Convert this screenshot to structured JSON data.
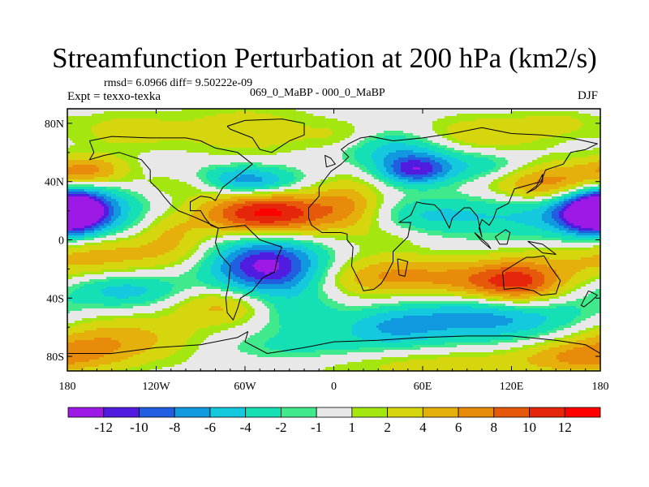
{
  "chart_data": {
    "type": "heatmap",
    "title": "Streamfunction Perturbation at 200 hPa (km2/s)",
    "stats_label": "rmsd= 6.0966 diff= 9.50222e-09",
    "left_label": "Expt = texxo-texka",
    "center_label": "069_0_MaBP - 000_0_MaBP",
    "right_label": "DJF",
    "xlim": [
      -180,
      180
    ],
    "ylim": [
      -90,
      90
    ],
    "x_ticks": [
      {
        "value": -180,
        "label": "180"
      },
      {
        "value": -120,
        "label": "120W"
      },
      {
        "value": -60,
        "label": "60W"
      },
      {
        "value": 0,
        "label": "0"
      },
      {
        "value": 60,
        "label": "60E"
      },
      {
        "value": 120,
        "label": "120E"
      },
      {
        "value": 180,
        "label": "180"
      }
    ],
    "y_ticks": [
      {
        "value": 80,
        "label": "80N"
      },
      {
        "value": 40,
        "label": "40N"
      },
      {
        "value": 0,
        "label": "0"
      },
      {
        "value": -40,
        "label": "40S"
      },
      {
        "value": -80,
        "label": "80S"
      }
    ],
    "colorbar": {
      "levels": [
        -12,
        -10,
        -8,
        -6,
        -4,
        -2,
        -1,
        1,
        2,
        4,
        6,
        8,
        10,
        12
      ],
      "labels": [
        "-12",
        "-10",
        "-8",
        "-6",
        "-4",
        "-2",
        "-1",
        "1",
        "2",
        "4",
        "6",
        "8",
        "10",
        "12"
      ],
      "colors": [
        "#9c19e6",
        "#4f1ce0",
        "#215fe0",
        "#1199e0",
        "#14c8de",
        "#14dfb5",
        "#3fe98c",
        "#e8e8e8",
        "#a4e610",
        "#d6d60f",
        "#e6b00c",
        "#e88a0a",
        "#e6590a",
        "#e6260b",
        "#ff0000"
      ]
    },
    "features": [
      {
        "lon": -180,
        "lat": 20,
        "val": -10,
        "slon": 16,
        "slat": 11
      },
      {
        "lon": 180,
        "lat": 20,
        "val": -10,
        "slon": 22,
        "slat": 11
      },
      {
        "lon": -170,
        "lat": 22,
        "val": -4,
        "slon": 32,
        "slat": 14
      },
      {
        "lon": 120,
        "lat": 18,
        "val": -4,
        "slon": 40,
        "slat": 12
      },
      {
        "lon": -140,
        "lat": 75,
        "val": 3,
        "slon": 25,
        "slat": 9
      },
      {
        "lon": -165,
        "lat": 48,
        "val": 6,
        "slon": 18,
        "slat": 7
      },
      {
        "lon": -95,
        "lat": 38,
        "val": 3,
        "slon": 25,
        "slat": 6
      },
      {
        "lon": -60,
        "lat": 40,
        "val": -9,
        "slon": 24,
        "slat": 7
      },
      {
        "lon": -60,
        "lat": 75,
        "val": 3.5,
        "slon": 32,
        "slat": 12
      },
      {
        "lon": -45,
        "lat": 18,
        "val": 13,
        "slon": 32,
        "slat": 11
      },
      {
        "lon": -110,
        "lat": 6,
        "val": 3,
        "slon": 14,
        "slat": 8
      },
      {
        "lon": 10,
        "lat": 25,
        "val": 4.5,
        "slon": 16,
        "slat": 13
      },
      {
        "lon": 40,
        "lat": 62,
        "val": -5,
        "slon": 28,
        "slat": 9
      },
      {
        "lon": 55,
        "lat": 48,
        "val": -10,
        "slon": 16,
        "slat": 7
      },
      {
        "lon": 5,
        "lat": 70,
        "val": 2.5,
        "slon": 18,
        "slat": 8
      },
      {
        "lon": 100,
        "lat": 72,
        "val": 4,
        "slon": 30,
        "slat": 9
      },
      {
        "lon": 150,
        "lat": 80,
        "val": 2.5,
        "slon": 18,
        "slat": 6
      },
      {
        "lon": 150,
        "lat": 38,
        "val": 9,
        "slon": 32,
        "slat": 10
      },
      {
        "lon": 100,
        "lat": 50,
        "val": -4,
        "slon": 25,
        "slat": 8
      },
      {
        "lon": 60,
        "lat": 16,
        "val": -3,
        "slon": 24,
        "slat": 8
      },
      {
        "lon": 40,
        "lat": 2,
        "val": 1.5,
        "slon": 18,
        "slat": 7
      },
      {
        "lon": -160,
        "lat": -10,
        "val": 5,
        "slon": 30,
        "slat": 10
      },
      {
        "lon": -110,
        "lat": -8,
        "val": 2.5,
        "slon": 20,
        "slat": 8
      },
      {
        "lon": -45,
        "lat": -18,
        "val": -13,
        "slon": 26,
        "slat": 14
      },
      {
        "lon": 10,
        "lat": -28,
        "val": 1.5,
        "slon": 22,
        "slat": 10
      },
      {
        "lon": 45,
        "lat": -25,
        "val": 6,
        "slon": 30,
        "slat": 10
      },
      {
        "lon": 125,
        "lat": -30,
        "val": 11,
        "slon": 22,
        "slat": 12
      },
      {
        "lon": 90,
        "lat": -30,
        "val": 4,
        "slon": 22,
        "slat": 10
      },
      {
        "lon": 165,
        "lat": -20,
        "val": 1.5,
        "slon": 20,
        "slat": 10
      },
      {
        "lon": -140,
        "lat": -35,
        "val": -5,
        "slon": 28,
        "slat": 8
      },
      {
        "lon": -75,
        "lat": -45,
        "val": 5,
        "slon": 25,
        "slat": 9
      },
      {
        "lon": -25,
        "lat": -50,
        "val": -3,
        "slon": 20,
        "slat": 10
      },
      {
        "lon": 110,
        "lat": -52,
        "val": -8,
        "slon": 42,
        "slat": 12
      },
      {
        "lon": 40,
        "lat": -60,
        "val": -5,
        "slon": 25,
        "slat": 9
      },
      {
        "lon": -150,
        "lat": -68,
        "val": 5.5,
        "slon": 40,
        "slat": 11
      },
      {
        "lon": -20,
        "lat": -75,
        "val": -3,
        "slon": 45,
        "slat": 9
      },
      {
        "lon": 60,
        "lat": -85,
        "val": 3,
        "slon": 80,
        "slat": 8
      },
      {
        "lon": 170,
        "lat": -80,
        "val": 5,
        "slon": 30,
        "slat": 8
      }
    ],
    "coastlines": [
      {
        "name": "north-america",
        "points": [
          [
            -165,
            68
          ],
          [
            -150,
            71
          ],
          [
            -125,
            70
          ],
          [
            -100,
            70
          ],
          [
            -90,
            68
          ],
          [
            -80,
            63
          ],
          [
            -65,
            60
          ],
          [
            -55,
            52
          ],
          [
            -65,
            44
          ],
          [
            -75,
            36
          ],
          [
            -80,
            27
          ],
          [
            -83,
            29
          ],
          [
            -90,
            30
          ],
          [
            -97,
            26
          ],
          [
            -97,
            20
          ],
          [
            -90,
            20
          ],
          [
            -87,
            15
          ],
          [
            -83,
            10
          ],
          [
            -78,
            8
          ],
          [
            -86,
            12
          ],
          [
            -95,
            16
          ],
          [
            -105,
            20
          ],
          [
            -110,
            24
          ],
          [
            -115,
            30
          ],
          [
            -118,
            34
          ],
          [
            -124,
            40
          ],
          [
            -124,
            48
          ],
          [
            -130,
            55
          ],
          [
            -145,
            60
          ],
          [
            -155,
            58
          ],
          [
            -165,
            55
          ],
          [
            -162,
            60
          ],
          [
            -165,
            68
          ]
        ]
      },
      {
        "name": "south-america",
        "points": [
          [
            -78,
            8
          ],
          [
            -60,
            10
          ],
          [
            -50,
            0
          ],
          [
            -35,
            -5
          ],
          [
            -38,
            -12
          ],
          [
            -40,
            -22
          ],
          [
            -48,
            -26
          ],
          [
            -55,
            -35
          ],
          [
            -63,
            -40
          ],
          [
            -65,
            -47
          ],
          [
            -68,
            -55
          ],
          [
            -72,
            -50
          ],
          [
            -73,
            -40
          ],
          [
            -71,
            -30
          ],
          [
            -70,
            -18
          ],
          [
            -77,
            -10
          ],
          [
            -80,
            -2
          ],
          [
            -78,
            8
          ]
        ]
      },
      {
        "name": "greenland",
        "points": [
          [
            -72,
            78
          ],
          [
            -60,
            82
          ],
          [
            -35,
            83
          ],
          [
            -20,
            80
          ],
          [
            -20,
            72
          ],
          [
            -30,
            68
          ],
          [
            -42,
            60
          ],
          [
            -50,
            62
          ],
          [
            -55,
            70
          ],
          [
            -70,
            76
          ],
          [
            -72,
            78
          ]
        ]
      },
      {
        "name": "eurasia-africa",
        "points": [
          [
            -10,
            36
          ],
          [
            -5,
            43
          ],
          [
            -2,
            47
          ],
          [
            5,
            52
          ],
          [
            10,
            57
          ],
          [
            5,
            62
          ],
          [
            10,
            66
          ],
          [
            18,
            70
          ],
          [
            25,
            71
          ],
          [
            40,
            68
          ],
          [
            60,
            70
          ],
          [
            80,
            73
          ],
          [
            100,
            77
          ],
          [
            120,
            73
          ],
          [
            140,
            72
          ],
          [
            160,
            70
          ],
          [
            178,
            66
          ],
          [
            170,
            62
          ],
          [
            160,
            60
          ],
          [
            155,
            52
          ],
          [
            143,
            48
          ],
          [
            140,
            40
          ],
          [
            122,
            35
          ],
          [
            120,
            30
          ],
          [
            118,
            25
          ],
          [
            110,
            21
          ],
          [
            108,
            15
          ],
          [
            105,
            10
          ],
          [
            100,
            14
          ],
          [
            98,
            8
          ],
          [
            100,
            2
          ],
          [
            97,
            16
          ],
          [
            92,
            22
          ],
          [
            88,
            22
          ],
          [
            80,
            15
          ],
          [
            78,
            8
          ],
          [
            72,
            20
          ],
          [
            68,
            24
          ],
          [
            60,
            25
          ],
          [
            56,
            26
          ],
          [
            52,
            17
          ],
          [
            44,
            12
          ],
          [
            52,
            12
          ],
          [
            50,
            2
          ],
          [
            40,
            -8
          ],
          [
            40,
            -15
          ],
          [
            35,
            -25
          ],
          [
            32,
            -30
          ],
          [
            27,
            -34
          ],
          [
            20,
            -35
          ],
          [
            18,
            -30
          ],
          [
            12,
            -18
          ],
          [
            13,
            -5
          ],
          [
            9,
            0
          ],
          [
            9,
            4
          ],
          [
            5,
            5
          ],
          [
            -8,
            5
          ],
          [
            -15,
            10
          ],
          [
            -17,
            15
          ],
          [
            -17,
            22
          ],
          [
            -10,
            30
          ],
          [
            -10,
            36
          ]
        ]
      },
      {
        "name": "australia",
        "points": [
          [
            114,
            -22
          ],
          [
            115,
            -34
          ],
          [
            125,
            -33
          ],
          [
            135,
            -35
          ],
          [
            140,
            -38
          ],
          [
            150,
            -37
          ],
          [
            153,
            -28
          ],
          [
            146,
            -18
          ],
          [
            142,
            -11
          ],
          [
            135,
            -12
          ],
          [
            130,
            -12
          ],
          [
            125,
            -15
          ],
          [
            114,
            -22
          ]
        ]
      },
      {
        "name": "madagascar",
        "points": [
          [
            43,
            -13
          ],
          [
            50,
            -15
          ],
          [
            48,
            -25
          ],
          [
            44,
            -24
          ],
          [
            43,
            -13
          ]
        ]
      },
      {
        "name": "borneo",
        "points": [
          [
            109,
            2
          ],
          [
            116,
            7
          ],
          [
            119,
            5
          ],
          [
            117,
            -3
          ],
          [
            112,
            -3
          ],
          [
            109,
            2
          ]
        ]
      },
      {
        "name": "new-guinea",
        "points": [
          [
            131,
            -1
          ],
          [
            141,
            -3
          ],
          [
            150,
            -10
          ],
          [
            141,
            -9
          ],
          [
            135,
            -4
          ],
          [
            131,
            -1
          ]
        ]
      },
      {
        "name": "sumatra",
        "points": [
          [
            95,
            5
          ],
          [
            104,
            -3
          ],
          [
            106,
            -6
          ],
          [
            100,
            -1
          ],
          [
            95,
            5
          ]
        ]
      },
      {
        "name": "japan",
        "points": [
          [
            130,
            32
          ],
          [
            136,
            35
          ],
          [
            141,
            40
          ],
          [
            141,
            45
          ],
          [
            137,
            37
          ],
          [
            130,
            32
          ]
        ]
      },
      {
        "name": "uk",
        "points": [
          [
            -5,
            50
          ],
          [
            1,
            52
          ],
          [
            -2,
            56
          ],
          [
            -6,
            58
          ],
          [
            -5,
            50
          ]
        ]
      },
      {
        "name": "new-zealand",
        "points": [
          [
            172,
            -35
          ],
          [
            178,
            -38
          ],
          [
            174,
            -42
          ],
          [
            169,
            -46
          ],
          [
            167,
            -45
          ],
          [
            172,
            -35
          ]
        ]
      },
      {
        "name": "antarctica",
        "points": [
          [
            -180,
            -78
          ],
          [
            -150,
            -78
          ],
          [
            -120,
            -74
          ],
          [
            -90,
            -72
          ],
          [
            -65,
            -67
          ],
          [
            -58,
            -63
          ],
          [
            -60,
            -70
          ],
          [
            -45,
            -78
          ],
          [
            -20,
            -74
          ],
          [
            0,
            -70
          ],
          [
            30,
            -69
          ],
          [
            60,
            -67
          ],
          [
            90,
            -66
          ],
          [
            120,
            -66
          ],
          [
            150,
            -69
          ],
          [
            170,
            -72
          ],
          [
            180,
            -78
          ]
        ]
      }
    ]
  }
}
